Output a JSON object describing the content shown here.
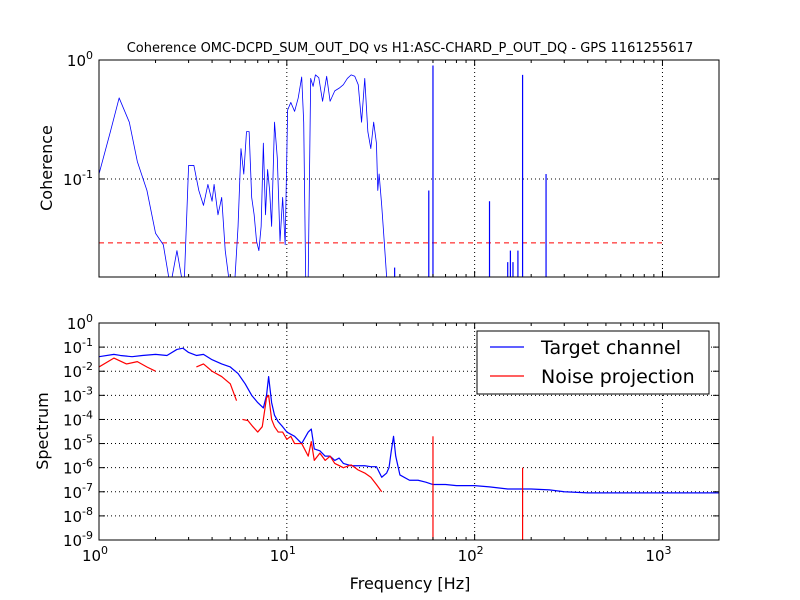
{
  "chart_data": [
    {
      "type": "line",
      "title": "Coherence OMC-DCPD_SUM_OUT_DQ vs H1:ASC-CHARD_P_OUT_DQ - GPS 1161255617",
      "xlabel": "",
      "ylabel": "Coherence",
      "xscale": "log",
      "yscale": "log",
      "xlim": [
        1,
        2000
      ],
      "ylim": [
        0.015,
        1
      ],
      "xticks": [
        {
          "base": "10",
          "exp": "0",
          "value": 1
        },
        {
          "base": "10",
          "exp": "1",
          "value": 10
        },
        {
          "base": "10",
          "exp": "2",
          "value": 100
        },
        {
          "base": "10",
          "exp": "3",
          "value": 1000
        }
      ],
      "yticks": [
        {
          "base": "10",
          "exp": "-1",
          "value": 0.1
        },
        {
          "base": "10",
          "exp": "0",
          "value": 1
        }
      ],
      "grid": true,
      "threshold": {
        "value": 0.029,
        "x_end": 1000,
        "color": "#ff0000"
      },
      "series": [
        {
          "color": "#0000ff",
          "x": [
            1.0,
            1.15,
            1.28,
            1.45,
            1.6,
            1.8,
            2.0,
            2.2,
            2.35,
            2.45,
            2.6,
            2.75,
            2.85,
            3.0,
            3.2,
            3.4,
            3.6,
            3.8,
            4.0,
            4.1,
            4.3,
            4.5,
            4.7,
            4.9,
            5.1,
            5.3,
            5.5,
            5.7,
            5.9,
            6.1,
            6.3,
            6.5,
            6.7,
            6.9,
            7.1,
            7.3,
            7.5,
            7.7,
            7.9,
            8.1,
            8.3,
            8.6,
            8.9,
            9.2,
            9.5,
            9.8,
            10.1,
            10.5,
            11.0,
            11.5,
            12.0,
            12.3,
            12.6,
            13.0,
            13.4,
            13.8,
            14.2,
            14.8,
            15.5,
            16.3,
            17.0,
            18.0,
            19.0,
            20.0,
            21.0,
            22.0,
            23.0,
            24.0,
            25.0,
            26.0,
            27.0,
            28.0,
            29.0,
            30.0,
            30.5,
            31.0,
            32.0,
            33.0,
            34.0
          ],
          "y": [
            0.11,
            0.25,
            0.48,
            0.3,
            0.14,
            0.08,
            0.035,
            0.028,
            0.015,
            0.015,
            0.025,
            0.015,
            0.015,
            0.13,
            0.13,
            0.08,
            0.06,
            0.09,
            0.065,
            0.09,
            0.05,
            0.07,
            0.025,
            0.015,
            0.015,
            0.015,
            0.04,
            0.18,
            0.11,
            0.25,
            0.25,
            0.07,
            0.05,
            0.03,
            0.025,
            0.04,
            0.2,
            0.05,
            0.12,
            0.08,
            0.04,
            0.3,
            0.15,
            0.03,
            0.07,
            0.028,
            0.38,
            0.44,
            0.37,
            0.48,
            0.72,
            0.3,
            0.015,
            0.015,
            0.7,
            0.6,
            0.75,
            0.71,
            0.45,
            0.73,
            0.45,
            0.55,
            0.58,
            0.62,
            0.7,
            0.75,
            0.73,
            0.62,
            0.3,
            0.7,
            0.25,
            0.18,
            0.3,
            0.2,
            0.08,
            0.11,
            0.06,
            0.03,
            0.015
          ]
        }
      ],
      "spikes": {
        "color": "#0000ff",
        "x": [
          37.5,
          57.0,
          60.0,
          120.0,
          150.0,
          155.0,
          160.0,
          170.0,
          180.0,
          240.0
        ],
        "y": [
          0.018,
          0.08,
          0.9,
          0.065,
          0.02,
          0.025,
          0.02,
          0.025,
          0.75,
          0.11
        ]
      }
    },
    {
      "type": "line",
      "title": "",
      "xlabel": "Frequency [Hz]",
      "ylabel": "Spectrum",
      "xscale": "log",
      "yscale": "log",
      "xlim": [
        1,
        2000
      ],
      "ylim": [
        1e-09,
        1
      ],
      "xticks": [
        {
          "base": "10",
          "exp": "0",
          "value": 1
        },
        {
          "base": "10",
          "exp": "1",
          "value": 10
        },
        {
          "base": "10",
          "exp": "2",
          "value": 100
        },
        {
          "base": "10",
          "exp": "3",
          "value": 1000
        }
      ],
      "yticks": [
        {
          "base": "10",
          "exp": "-9",
          "value": 1e-09
        },
        {
          "base": "10",
          "exp": "-8",
          "value": 1e-08
        },
        {
          "base": "10",
          "exp": "-7",
          "value": 1e-07
        },
        {
          "base": "10",
          "exp": "-6",
          "value": 1e-06
        },
        {
          "base": "10",
          "exp": "-5",
          "value": 1e-05
        },
        {
          "base": "10",
          "exp": "-4",
          "value": 0.0001
        },
        {
          "base": "10",
          "exp": "-3",
          "value": 0.001
        },
        {
          "base": "10",
          "exp": "-2",
          "value": 0.01
        },
        {
          "base": "10",
          "exp": "-1",
          "value": 0.1
        },
        {
          "base": "10",
          "exp": "0",
          "value": 1
        }
      ],
      "grid": true,
      "legend": {
        "placement": "top-right",
        "entries": [
          {
            "name": "Target channel",
            "color": "#0000ff"
          },
          {
            "name": "Noise projection",
            "color": "#ff0000"
          }
        ]
      },
      "series": [
        {
          "name": "Target channel",
          "color": "#0000ff",
          "x": [
            1.0,
            1.2,
            1.3,
            1.5,
            1.7,
            2.0,
            2.3,
            2.6,
            2.8,
            3.0,
            3.3,
            3.6,
            4.0,
            4.5,
            5.0,
            5.5,
            6.0,
            6.5,
            7.0,
            7.5,
            7.8,
            8.0,
            8.3,
            8.6,
            9.0,
            9.5,
            10.0,
            11.0,
            12.0,
            13.0,
            13.5,
            14.0,
            15.0,
            16.0,
            17.0,
            18.0,
            19.0,
            20.0,
            22.0,
            24.0,
            26.0,
            28.0,
            30.0,
            32.0,
            34.0,
            35.0,
            36.0,
            37.0,
            38.0,
            40.0,
            45.0,
            50.0,
            55.0,
            60.0,
            70.0,
            80.0,
            100.0,
            120.0,
            150.0,
            180.0,
            200.0,
            250.0,
            300.0,
            400.0,
            500.0,
            600.0,
            800.0,
            1000.0,
            1200.0,
            1500.0,
            2000.0
          ],
          "y": [
            0.04,
            0.05,
            0.045,
            0.04,
            0.045,
            0.05,
            0.045,
            0.08,
            0.09,
            0.06,
            0.045,
            0.05,
            0.03,
            0.02,
            0.015,
            0.008,
            0.003,
            0.001,
            0.0005,
            0.0003,
            0.001,
            0.006,
            0.0005,
            0.00015,
            8e-05,
            5e-05,
            3e-05,
            2e-05,
            1e-05,
            3e-05,
            4e-05,
            6e-06,
            5e-06,
            3e-06,
            3e-06,
            2e-06,
            2.5e-06,
            1.5e-06,
            1.2e-06,
            1.2e-06,
            1.2e-06,
            1.1e-06,
            1.1e-06,
            4e-07,
            6e-07,
            1e-06,
            5e-06,
            2e-05,
            3e-06,
            5e-07,
            3e-07,
            3e-07,
            2.5e-07,
            2e-07,
            2e-07,
            1.8e-07,
            1.8e-07,
            1.6e-07,
            1.3e-07,
            1.3e-07,
            1.3e-07,
            1.2e-07,
            1e-07,
            9e-08,
            9e-08,
            9e-08,
            9e-08,
            9e-08,
            9e-08,
            9e-08,
            9e-08
          ]
        },
        {
          "name": "Noise projection",
          "color": "#ff0000",
          "segments": [
            {
              "x": [
                1.0,
                1.2,
                1.4,
                1.6,
                1.8,
                2.0
              ],
              "y": [
                0.015,
                0.035,
                0.02,
                0.025,
                0.015,
                0.01
              ]
            },
            {
              "x": [
                3.3,
                3.6,
                4.0,
                4.5,
                5.0,
                5.4
              ],
              "y": [
                0.015,
                0.02,
                0.01,
                0.006,
                0.003,
                0.0006
              ]
            },
            {
              "x": [
                5.8,
                6.2,
                6.6,
                7.0,
                7.4,
                7.8,
                8.0,
                8.3,
                8.6,
                9.0,
                9.5,
                10.0,
                10.5,
                11.0,
                12.0,
                13.0,
                13.5,
                14.0,
                15.0,
                16.0,
                17.0,
                18.0,
                20.0,
                22.0,
                24.0,
                26.0,
                28.0,
                30.0,
                32.0
              ],
              "y": [
                0.0001,
                9e-05,
                5e-05,
                3e-05,
                5e-05,
                0.0008,
                0.001,
                0.0001,
                5e-05,
                3e-05,
                3e-05,
                1.5e-05,
                2e-05,
                1e-05,
                1e-05,
                3e-06,
                1.2e-05,
                2e-06,
                4e-06,
                2e-06,
                3e-06,
                1.5e-06,
                1e-06,
                1.3e-06,
                8e-07,
                6e-07,
                4e-07,
                2e-07,
                1e-07
              ]
            }
          ],
          "spikes": {
            "x": [
              60.0,
              180.0
            ],
            "y": [
              2e-05,
              1e-06
            ]
          }
        }
      ]
    }
  ]
}
